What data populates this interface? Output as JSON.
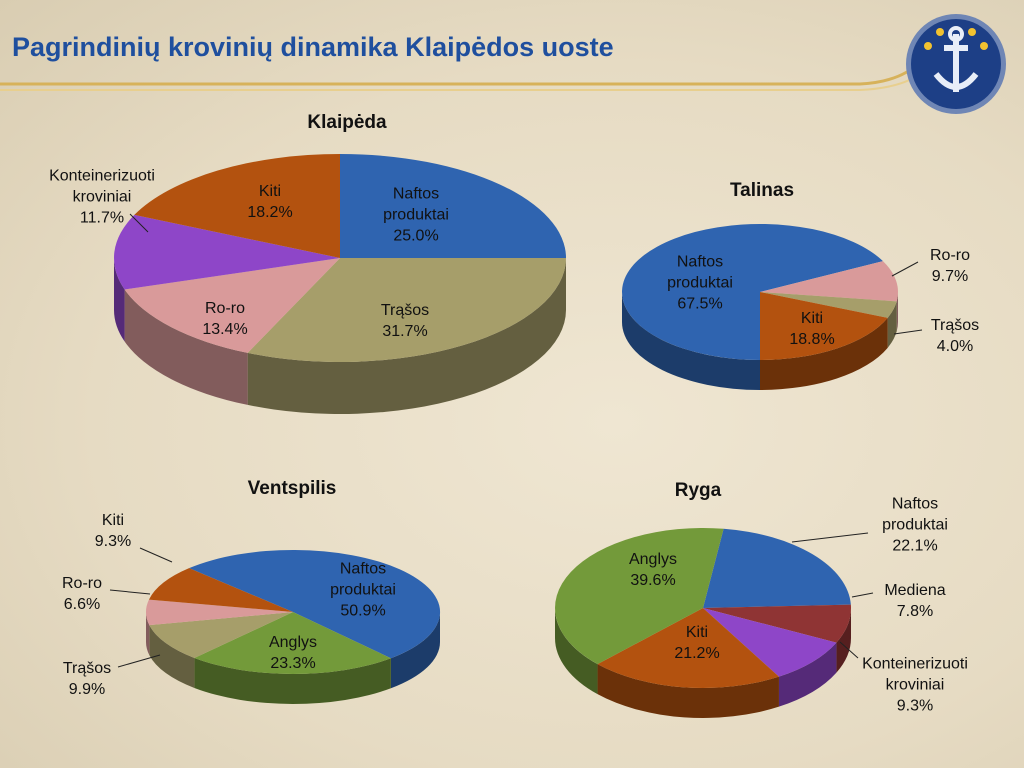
{
  "title": "Pagrindinių krovinių dinamika Klaipėdos uoste",
  "chart_data": [
    {
      "type": "pie",
      "title": "Klaipėda",
      "categories": [
        "Naftos produktai",
        "Trąšos",
        "Ro-ro",
        "Konteinerizuoti kroviniai",
        "Kiti"
      ],
      "values": [
        25.0,
        31.7,
        13.4,
        11.7,
        18.2
      ],
      "value_labels": [
        "25.0%",
        "31.7%",
        "13.4%",
        "11.7%",
        "18.2%"
      ],
      "colors": [
        "#2f64b0",
        "#a69e6a",
        "#d99a9a",
        "#8e46c8",
        "#b3520f"
      ]
    },
    {
      "type": "pie",
      "title": "Talinas",
      "categories": [
        "Naftos produktai",
        "Ro-ro",
        "Trąšos",
        "Kiti"
      ],
      "values": [
        67.5,
        9.7,
        4.0,
        18.8
      ],
      "value_labels": [
        "67.5%",
        "9.7%",
        "4.0%",
        "18.8%"
      ],
      "colors": [
        "#2f64b0",
        "#d99a9a",
        "#a69e6a",
        "#b3520f"
      ]
    },
    {
      "type": "pie",
      "title": "Ventspilis",
      "categories": [
        "Naftos produktai",
        "Anglys",
        "Trąšos",
        "Ro-ro",
        "Kiti"
      ],
      "values": [
        50.9,
        23.3,
        9.9,
        6.6,
        9.3
      ],
      "value_labels": [
        "50.9%",
        "23.3%",
        "9.9%",
        "6.6%",
        "9.3%"
      ],
      "colors": [
        "#2f64b0",
        "#739a3a",
        "#a69e6a",
        "#d99a9a",
        "#b3520f"
      ]
    },
    {
      "type": "pie",
      "title": "Ryga",
      "categories": [
        "Naftos produktai",
        "Mediena",
        "Konteinerizuoti kroviniai",
        "Kiti",
        "Anglys"
      ],
      "values": [
        22.1,
        7.8,
        9.3,
        21.2,
        39.6
      ],
      "value_labels": [
        "22.1%",
        "7.8%",
        "9.3%",
        "21.2%",
        "39.6%"
      ],
      "colors": [
        "#2f64b0",
        "#8f3434",
        "#8e46c8",
        "#b3520f",
        "#739a3a"
      ]
    }
  ]
}
